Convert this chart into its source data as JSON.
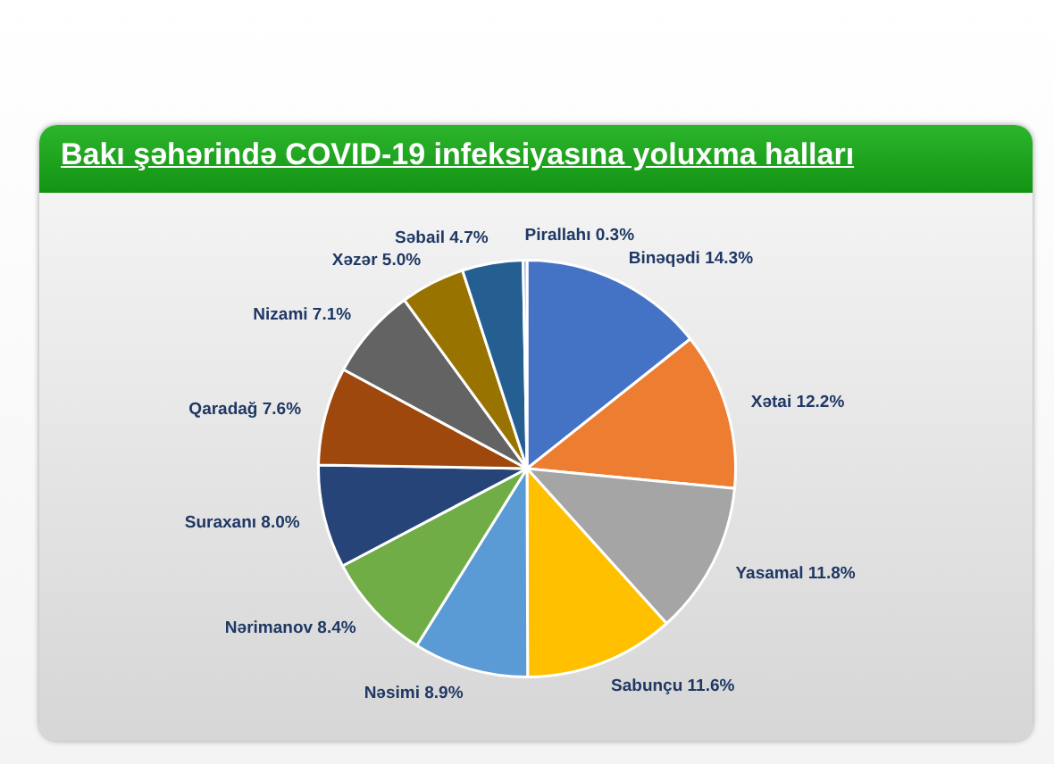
{
  "chart_data": {
    "type": "pie",
    "title": "Bakı şəhərində COVID-19 infeksiyasına yoluxma halları",
    "categories": [
      "Binəqədi",
      "Xətai",
      "Yasamal",
      "Sabunçu",
      "Nəsimi",
      "Nərimanov",
      "Suraxanı",
      "Qaradağ",
      "Nizami",
      "Xəzər",
      "Səbail",
      "Pirallahı"
    ],
    "values": [
      14.3,
      12.2,
      11.8,
      11.6,
      8.9,
      8.4,
      8.0,
      7.6,
      7.1,
      5.0,
      4.7,
      0.3
    ],
    "value_labels": [
      "14.3%",
      "12.2%",
      "11.8%",
      "11.6%",
      "8.9%",
      "8.4%",
      "8.0%",
      "7.6%",
      "7.1%",
      "5.0%",
      "4.7%",
      "0.3%"
    ],
    "colors": [
      "#4472c4",
      "#ed7d31",
      "#a5a5a5",
      "#ffc000",
      "#5b9bd5",
      "#70ad47",
      "#264478",
      "#9e480e",
      "#636363",
      "#997300",
      "#255e91",
      "#8faadc"
    ],
    "legend": false
  }
}
